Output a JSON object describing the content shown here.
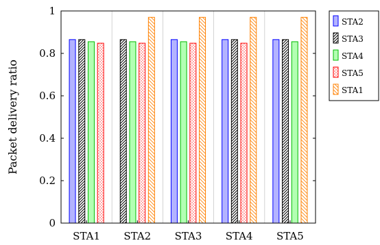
{
  "chart_data": {
    "type": "bar",
    "title": "",
    "xlabel": "",
    "ylabel": "Packet delivery ratio",
    "ylim": [
      0,
      1
    ],
    "yticks": [
      "0",
      "0.2",
      "0.4",
      "0.6",
      "0.8",
      "1"
    ],
    "grid": "vertical",
    "legend_position": "outside-right",
    "categories": [
      "STA1",
      "STA2",
      "STA3",
      "STA4",
      "STA5"
    ],
    "series": [
      {
        "name": "STA2",
        "color": "#0000ff",
        "fill": "#b3b3ff",
        "pattern": "solid",
        "values": [
          0.865,
          null,
          0.865,
          0.865,
          0.865
        ]
      },
      {
        "name": "STA3",
        "color": "#000000",
        "fill": "#ffffff",
        "pattern": "hatch-dense",
        "values": [
          0.865,
          0.865,
          null,
          0.865,
          0.865
        ]
      },
      {
        "name": "STA4",
        "color": "#00bb00",
        "fill": "#b3ffb3",
        "pattern": "solid",
        "values": [
          0.855,
          0.855,
          0.855,
          null,
          0.855
        ]
      },
      {
        "name": "STA5",
        "color": "#ff0000",
        "fill": "#ffffff",
        "pattern": "crosshatch",
        "values": [
          0.848,
          0.848,
          0.848,
          0.848,
          null
        ]
      },
      {
        "name": "STA1",
        "color": "#ff8000",
        "fill": "#ffffff",
        "pattern": "hatch",
        "values": [
          null,
          0.97,
          0.97,
          0.97,
          0.97
        ]
      }
    ]
  }
}
